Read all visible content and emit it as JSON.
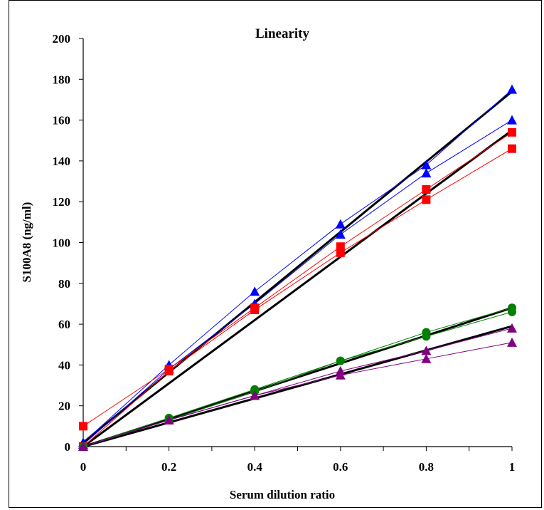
{
  "chart_data": {
    "type": "scatter",
    "title": "Linearity",
    "xlabel": "Serum dilution ratio",
    "ylabel": "S100A8 (ng/ml)",
    "xlim": [
      0,
      1
    ],
    "ylim": [
      0,
      200
    ],
    "x_ticks": [
      "0",
      "0.2",
      "0.4",
      "0.6",
      "0.8",
      "1"
    ],
    "y_ticks": [
      "0",
      "20",
      "40",
      "60",
      "80",
      "100",
      "120",
      "140",
      "160",
      "180",
      "200"
    ],
    "grid": false,
    "legend": false,
    "series": [
      {
        "color": "#0000ff",
        "marker": "triangle",
        "x": [
          0,
          0.2,
          0.4,
          0.6,
          0.8,
          1
        ],
        "y": [
          2,
          40,
          76,
          109,
          138,
          175
        ]
      },
      {
        "color": "#0000ff",
        "marker": "triangle",
        "x": [
          0,
          0.2,
          0.4,
          0.6,
          0.8,
          1
        ],
        "y": [
          1,
          38,
          70,
          104,
          134,
          160
        ]
      },
      {
        "color": "#ff0000",
        "marker": "square",
        "x": [
          0,
          0.2,
          0.4,
          0.6,
          0.8,
          1
        ],
        "y": [
          10,
          38,
          68,
          98,
          126,
          154
        ]
      },
      {
        "color": "#ff0000",
        "marker": "square",
        "x": [
          0,
          0.2,
          0.4,
          0.6,
          0.8,
          1
        ],
        "y": [
          0,
          37,
          67,
          95,
          121,
          146
        ]
      },
      {
        "color": "#008000",
        "marker": "circle",
        "x": [
          0,
          0.2,
          0.4,
          0.6,
          0.8,
          1
        ],
        "y": [
          0,
          14,
          28,
          42,
          56,
          68
        ]
      },
      {
        "color": "#008000",
        "marker": "circle",
        "x": [
          0,
          0.2,
          0.4,
          0.6,
          0.8,
          1
        ],
        "y": [
          0,
          13,
          27,
          42,
          54,
          66
        ]
      },
      {
        "color": "#800080",
        "marker": "triangle",
        "x": [
          0,
          0.2,
          0.4,
          0.6,
          0.8,
          1
        ],
        "y": [
          0,
          13,
          25,
          37,
          47,
          58
        ]
      },
      {
        "color": "#800080",
        "marker": "triangle",
        "x": [
          0,
          0.2,
          0.4,
          0.6,
          0.8,
          1
        ],
        "y": [
          0,
          13,
          25,
          35,
          43,
          51
        ]
      }
    ],
    "fit_lines": [
      {
        "color": "#000000",
        "x": [
          0,
          1
        ],
        "y": [
          2,
          174
        ]
      },
      {
        "color": "#000000",
        "x": [
          0,
          1
        ],
        "y": [
          0,
          155
        ]
      },
      {
        "color": "#000000",
        "x": [
          0,
          1
        ],
        "y": [
          0,
          68
        ]
      },
      {
        "color": "#000000",
        "x": [
          0,
          1
        ],
        "y": [
          0,
          59
        ]
      }
    ]
  }
}
